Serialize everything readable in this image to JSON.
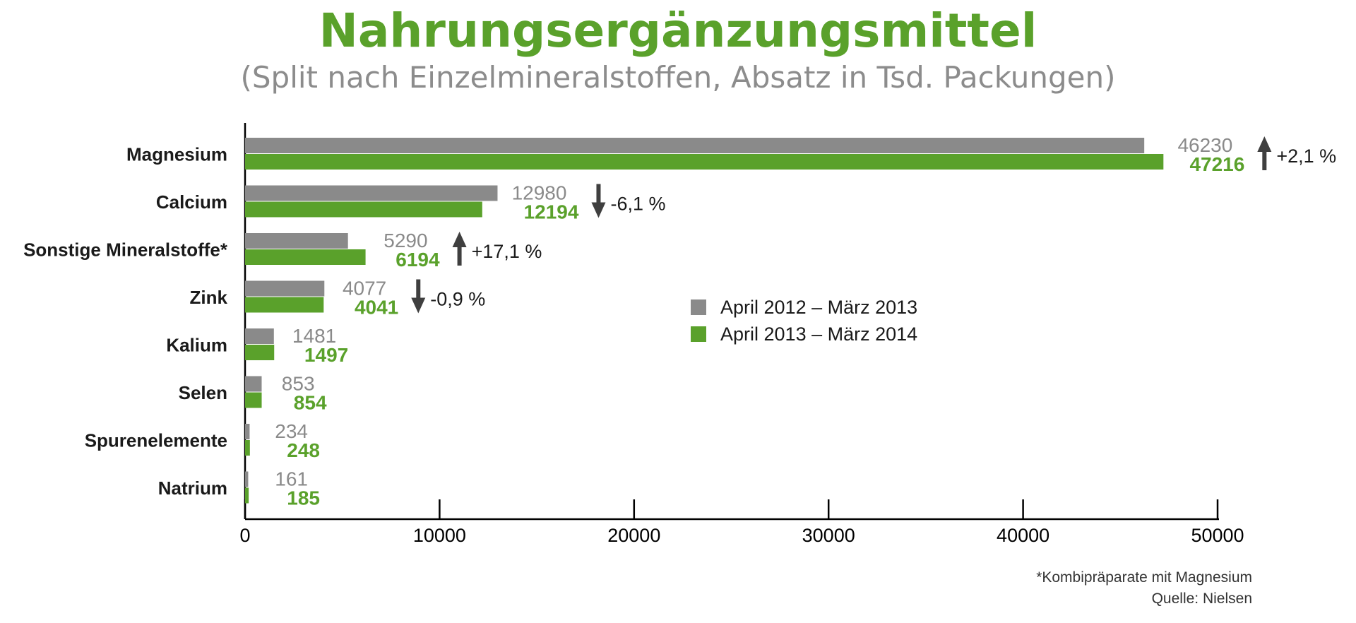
{
  "title": "Nahrungsergänzungsmittel",
  "subtitle": "(Split nach Einzelmineralstoffen, Absatz in Tsd. Packungen)",
  "colors": {
    "title": "#5aa12b",
    "subtitle": "#8c8c8c",
    "series_old": "#8a8a8a",
    "series_new": "#5aa12b",
    "arrow": "#3f3f3f"
  },
  "chart_data": {
    "type": "bar",
    "orientation": "horizontal",
    "categories": [
      "Magnesium",
      "Calcium",
      "Sonstige Mineralstoffe*",
      "Zink",
      "Kalium",
      "Selen",
      "Spurenelemente",
      "Natrium"
    ],
    "series": [
      {
        "name": "April 2012 – März 2013",
        "values": [
          46230,
          12980,
          5290,
          4077,
          1481,
          853,
          234,
          161
        ]
      },
      {
        "name": "April 2013 – März 2014",
        "values": [
          47216,
          12194,
          6194,
          4041,
          1497,
          854,
          248,
          185
        ]
      }
    ],
    "changes": [
      {
        "direction": "up",
        "label": "+2,1 %"
      },
      {
        "direction": "down",
        "label": "-6,1 %"
      },
      {
        "direction": "up",
        "label": "+17,1 %"
      },
      {
        "direction": "down",
        "label": "-0,9 %"
      },
      null,
      null,
      null,
      null
    ],
    "xlim": [
      0,
      50000
    ],
    "xticks": [
      0,
      10000,
      20000,
      30000,
      40000,
      50000
    ],
    "grid": false,
    "legend_position": "center-right"
  },
  "footnotes": [
    "*Kombipräparate mit Magnesium",
    "Quelle: Nielsen"
  ]
}
